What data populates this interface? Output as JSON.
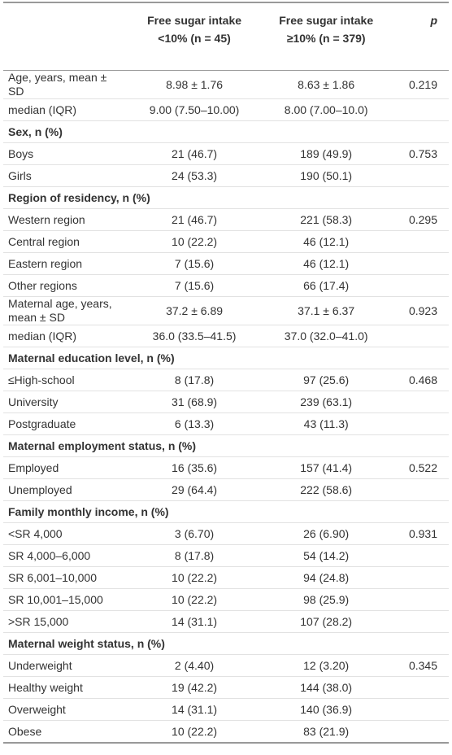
{
  "table": {
    "header": [
      [],
      [
        "Free sugar intake",
        "<10% (n = 45)"
      ],
      [
        "Free sugar intake",
        "≥10% (n = 379)"
      ],
      [
        "p"
      ]
    ],
    "rows": [
      [
        "Age, years, mean ± SD",
        "8.98 ± 1.76",
        "8.63 ± 1.86",
        "0.219"
      ],
      [
        "median (IQR)",
        "9.00 (7.50–10.00)",
        "8.00 (7.00–10.0)"
      ],
      [
        "Sex, n (%)"
      ],
      [
        "Boys",
        "21 (46.7)",
        "189 (49.9)",
        "0.753"
      ],
      [
        "Girls",
        "24 (53.3)",
        "190 (50.1)"
      ],
      [
        "Region of residency, n (%)"
      ],
      [
        "Western region",
        "21 (46.7)",
        "221 (58.3)",
        "0.295"
      ],
      [
        "Central region",
        "10 (22.2)",
        "46 (12.1)"
      ],
      [
        "Eastern region",
        "7 (15.6)",
        "46 (12.1)"
      ],
      [
        "Other regions",
        "7 (15.6)",
        "66 (17.4)"
      ],
      [
        "Maternal age, years, mean ± SD",
        "37.2 ± 6.89",
        "37.1 ± 6.37",
        "0.923"
      ],
      [
        "median (IQR)",
        "36.0 (33.5–41.5)",
        "37.0 (32.0–41.0)"
      ],
      [
        "Maternal education level, n (%)"
      ],
      [
        "≤High-school",
        "8 (17.8)",
        "97 (25.6)",
        "0.468"
      ],
      [
        "University",
        "31 (68.9)",
        "239 (63.1)"
      ],
      [
        "Postgraduate",
        "6 (13.3)",
        "43 (11.3)"
      ],
      [
        "Maternal employment status, n (%)"
      ],
      [
        "Employed",
        "16 (35.6)",
        "157 (41.4)",
        "0.522"
      ],
      [
        "Unemployed",
        "29 (64.4)",
        "222 (58.6)"
      ],
      [
        "Family monthly income, n (%)"
      ],
      [
        "<SR 4,000",
        "3 (6.70)",
        "26 (6.90)",
        "0.931"
      ],
      [
        "SR 4,000–6,000",
        "8 (17.8)",
        "54 (14.2)"
      ],
      [
        "SR 6,001–10,000",
        "10 (22.2)",
        "94 (24.8)"
      ],
      [
        "SR 10,001–15,000",
        "10 (22.2)",
        "98 (25.9)"
      ],
      [
        ">SR 15,000",
        "14 (31.1)",
        "107 (28.2)"
      ],
      [
        "Maternal weight status, n (%)"
      ],
      [
        "Underweight",
        "2 (4.40)",
        "12 (3.20)",
        "0.345"
      ],
      [
        "Healthy weight",
        "19 (42.2)",
        "144 (38.0)"
      ],
      [
        "Overweight",
        "14 (31.1)",
        "140 (36.9)"
      ],
      [
        "Obese",
        "10 (22.2)",
        "83 (21.9)"
      ]
    ]
  }
}
